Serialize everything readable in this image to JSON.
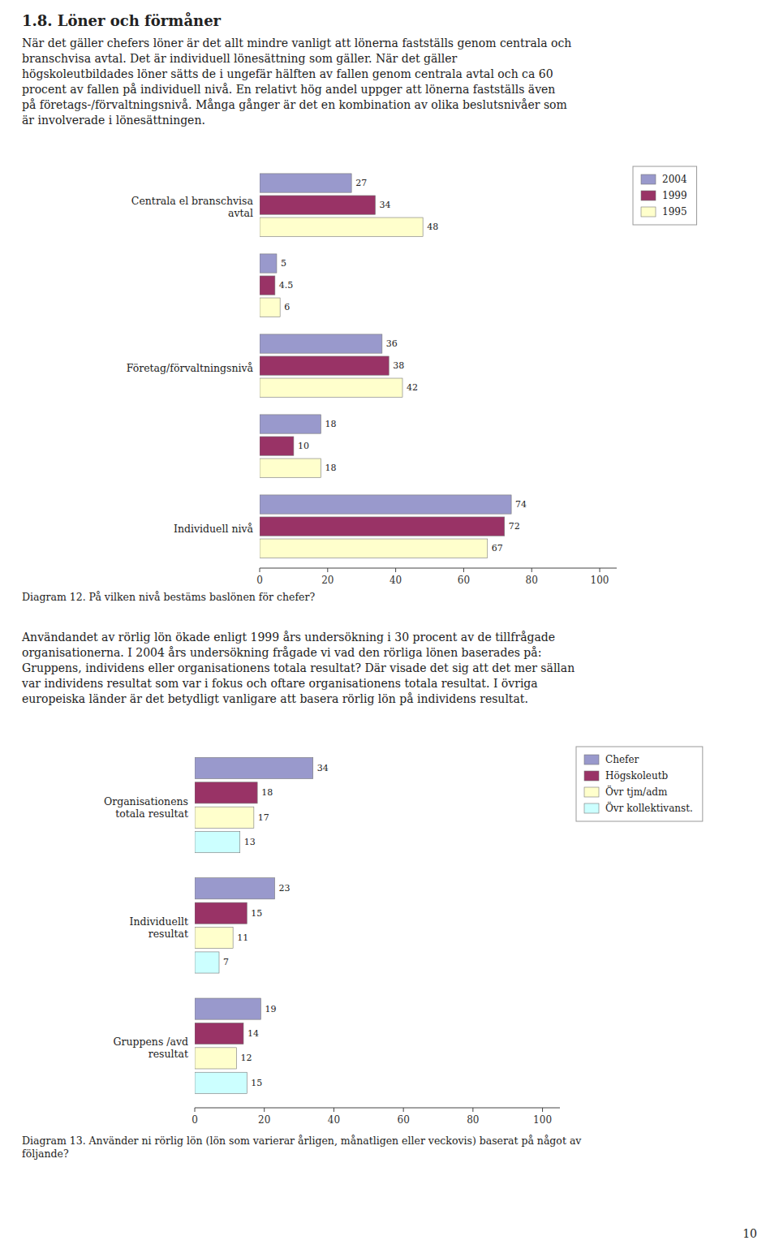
{
  "title": "1.8. Löner och förmåner",
  "paragraphs": [
    [
      "När det gäller chefers löner är det allt mindre vanligt att lönerna fastställs genom centrala och",
      "branschvisa avtal. Det är individuell lönesättning som gäller. När det gäller",
      "högskoleutbildades löner sätts de i ungefär hälften av fallen genom centrala avtal och ca 60",
      "procent av fallen på individuell nivå. En relativt hög andel uppger att lönerna fastställs även",
      "på företags-/förvaltningsnivå. Många gånger är det en kombination av olika beslutsnivåer som",
      "är involverade i lönesättningen."
    ],
    [
      "Användandet av rörlig lön ökade enligt 1999 års undersökning i 30 procent av de tillfrågade",
      "organisationerna. I 2004 års undersökning frågade vi vad den rörliga lönen baserades på:",
      "Gruppens, individens eller organisationens totala resultat? Där visade det sig att det mer sällan",
      "var individens resultat som var i fokus och oftare organisationens totala resultat. I övriga",
      "europeiska länder är det betydligt vanligare att basera rörlig lön på individens resultat."
    ]
  ],
  "page_number": "10",
  "chart_data": [
    {
      "type": "bar",
      "orientation": "horizontal",
      "title": "Diagram 12. På vilken nivå bestäms baslönen för chefer?",
      "categories": [
        "Centrala el branschvisa\navtal",
        null,
        "Företag/förvaltningsnivå",
        null,
        "Individuell nivå"
      ],
      "series": [
        {
          "name": "2004",
          "color": "#9999cc",
          "values": [
            27,
            5,
            36,
            18,
            74
          ]
        },
        {
          "name": "1999",
          "color": "#993366",
          "values": [
            34,
            4.5,
            38,
            10,
            72
          ]
        },
        {
          "name": "1995",
          "color": "#ffffcc",
          "values": [
            48,
            6,
            42,
            18,
            67
          ]
        }
      ],
      "xlim": [
        0,
        105
      ],
      "xticks": [
        0,
        20,
        40,
        60,
        80,
        100
      ],
      "data_labels": true,
      "legend": "right",
      "grid": false
    },
    {
      "type": "bar",
      "orientation": "horizontal",
      "title": "Diagram 13. Använder ni rörlig lön (lön som varierar årligen, månatligen eller veckovis) baserat på något av\nföljande?",
      "categories": [
        "Organisationens\ntotala resultat",
        "Individuellt\nresultat",
        "Gruppens /avd\nresultat"
      ],
      "series": [
        {
          "name": "Chefer",
          "color": "#9999cc",
          "values": [
            34,
            23,
            19
          ]
        },
        {
          "name": "Högskoleutb",
          "color": "#993366",
          "values": [
            18,
            15,
            14
          ]
        },
        {
          "name": "Övr tjm/adm",
          "color": "#ffffcc",
          "values": [
            17,
            11,
            12
          ]
        },
        {
          "name": "Övr kollektivanst.",
          "color": "#ccffff",
          "values": [
            13,
            7,
            15
          ]
        }
      ],
      "xlim": [
        0,
        105
      ],
      "xticks": [
        0,
        20,
        40,
        60,
        80,
        100
      ],
      "data_labels": true,
      "legend": "right",
      "grid": false
    }
  ]
}
